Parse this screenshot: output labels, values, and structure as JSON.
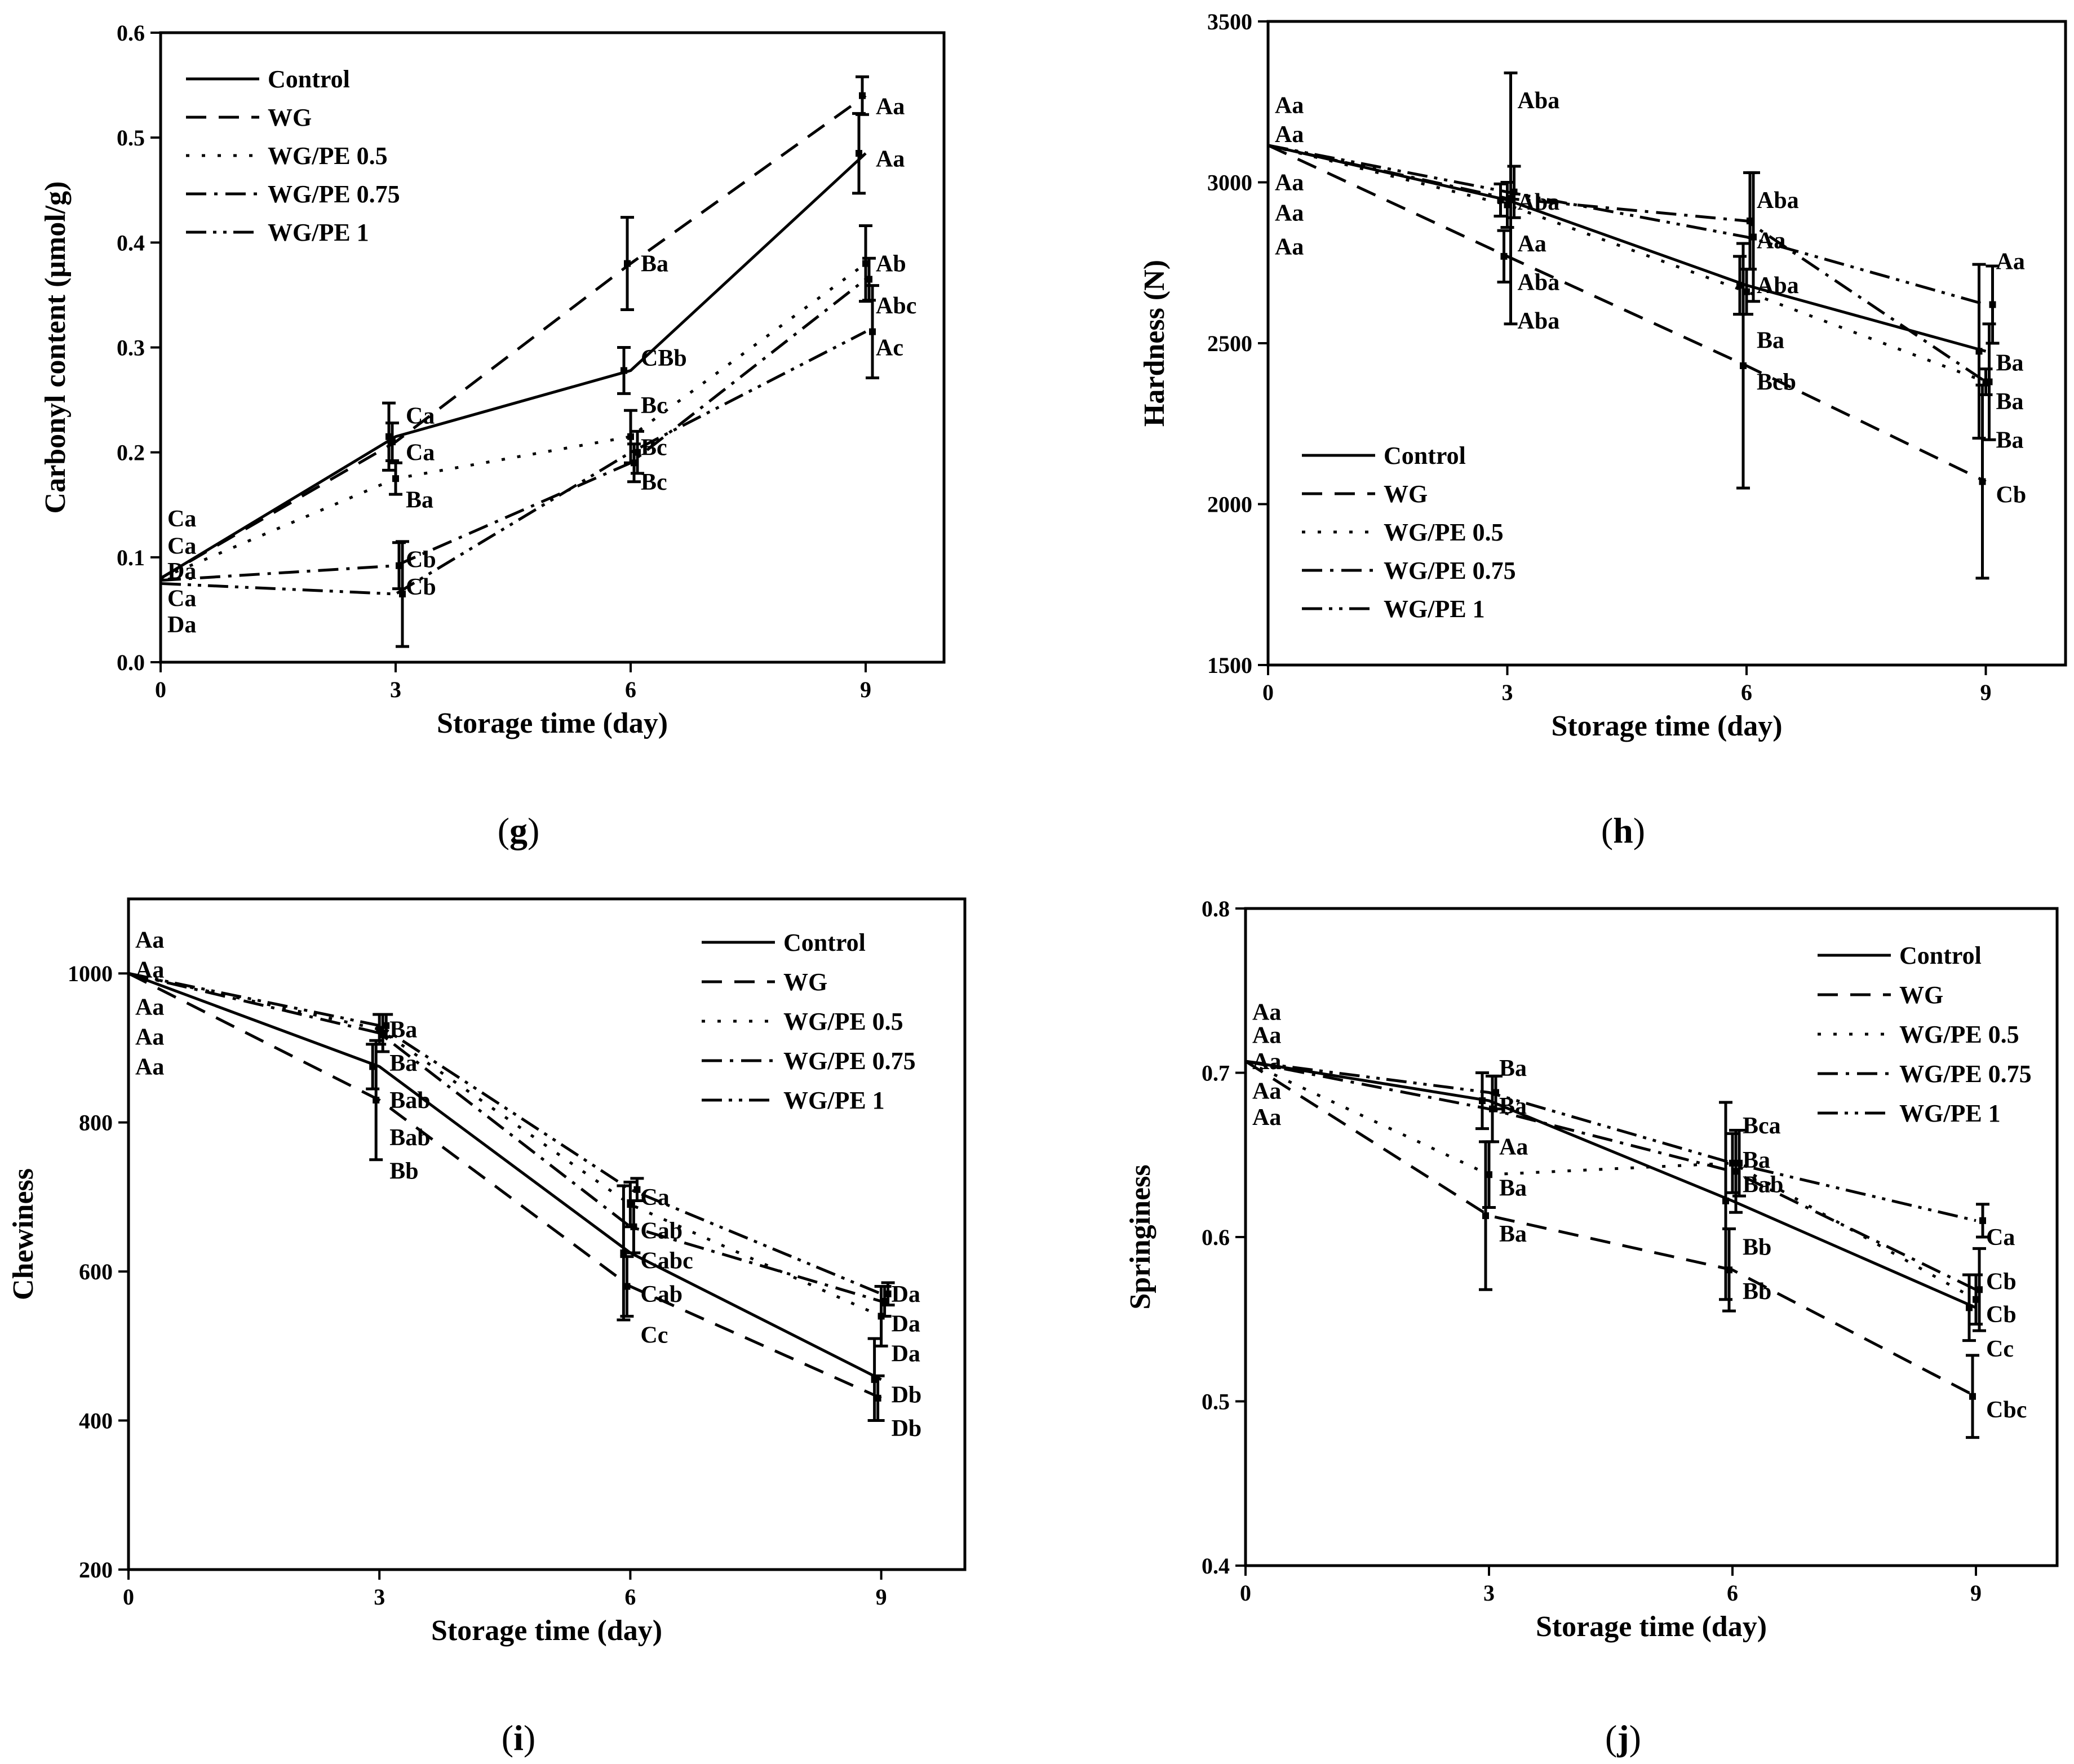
{
  "styles": {
    "Control": "",
    "WG": "36,22",
    "WG/PE 0.5": "6,22",
    "WG/PE 0.75": "36,14,6,14",
    "WG/PE 1": "36,12,6,12,6,12"
  },
  "chart_data": [
    {
      "id": "g",
      "type": "line",
      "panel_label": "g",
      "xlabel": "Storage time (day)",
      "ylabel": "Carbonyl content (μmol/g)",
      "x": [
        0,
        3,
        6,
        9
      ],
      "xlim": [
        0,
        10
      ],
      "ylim": [
        0,
        0.6
      ],
      "xticks": [
        0,
        3,
        6,
        9
      ],
      "yticks": [
        0.0,
        0.1,
        0.2,
        0.3,
        0.4,
        0.5,
        0.6
      ],
      "ytick_labels": [
        "0.0",
        "0.1",
        "0.2",
        "0.3",
        "0.4",
        "0.5",
        "0.6"
      ],
      "legend": [
        "Control",
        "WG",
        "WG/PE 0.5",
        "WG/PE 0.75",
        "WG/PE 1"
      ],
      "series": [
        {
          "name": "Control",
          "values": [
            0.08,
            0.215,
            0.278,
            0.485
          ],
          "err": [
            0.005,
            0.032,
            0.022,
            0.038
          ]
        },
        {
          "name": "WG",
          "values": [
            0.08,
            0.21,
            0.38,
            0.54
          ],
          "err": [
            0.005,
            0.018,
            0.044,
            0.018
          ]
        },
        {
          "name": "WG/PE 0.5",
          "values": [
            0.08,
            0.175,
            0.215,
            0.38
          ],
          "err": [
            0.005,
            0.015,
            0.025,
            0.036
          ]
        },
        {
          "name": "WG/PE 0.75",
          "values": [
            0.078,
            0.092,
            0.19,
            0.365
          ],
          "err": [
            0.004,
            0.022,
            0.018,
            0.02
          ]
        },
        {
          "name": "WG/PE 1",
          "values": [
            0.075,
            0.065,
            0.2,
            0.315
          ],
          "err": [
            0.004,
            0.05,
            0.02,
            0.044
          ]
        }
      ],
      "annotations": [
        {
          "x": 0,
          "y": 0.137,
          "text": "Ca"
        },
        {
          "x": 0,
          "y": 0.111,
          "text": "Ca"
        },
        {
          "x": 0,
          "y": 0.087,
          "text": "Da"
        },
        {
          "x": 0,
          "y": 0.061,
          "text": "Ca"
        },
        {
          "x": 0,
          "y": 0.036,
          "text": "Da"
        },
        {
          "x": 3,
          "y": 0.235,
          "text": "Ca"
        },
        {
          "x": 3,
          "y": 0.2,
          "text": "Ca"
        },
        {
          "x": 3,
          "y": 0.155,
          "text": "Ba"
        },
        {
          "x": 3,
          "y": 0.098,
          "text": "Cb"
        },
        {
          "x": 3,
          "y": 0.072,
          "text": "Cb"
        },
        {
          "x": 6,
          "y": 0.38,
          "text": "Ba"
        },
        {
          "x": 6,
          "y": 0.29,
          "text": "CBb"
        },
        {
          "x": 6,
          "y": 0.245,
          "text": "Bc"
        },
        {
          "x": 6,
          "y": 0.205,
          "text": "Bc"
        },
        {
          "x": 6,
          "y": 0.172,
          "text": "Bc"
        },
        {
          "x": 9,
          "y": 0.53,
          "text": "Aa"
        },
        {
          "x": 9,
          "y": 0.48,
          "text": "Aa"
        },
        {
          "x": 9,
          "y": 0.38,
          "text": "Ab"
        },
        {
          "x": 9,
          "y": 0.34,
          "text": "Abc"
        },
        {
          "x": 9,
          "y": 0.3,
          "text": "Ac"
        }
      ]
    },
    {
      "id": "h",
      "type": "line",
      "panel_label": "h",
      "xlabel": "Storage time (day)",
      "ylabel": "Hardness (N)",
      "x": [
        0,
        3,
        6,
        9
      ],
      "xlim": [
        0,
        10
      ],
      "ylim": [
        1500,
        3500
      ],
      "xticks": [
        0,
        3,
        6,
        9
      ],
      "yticks": [
        1500,
        2000,
        2500,
        3000,
        3500
      ],
      "ytick_labels": [
        "1500",
        "2000",
        "2500",
        "3000",
        "3500"
      ],
      "legend": [
        "Control",
        "WG",
        "WG/PE 0.5",
        "WG/PE 0.75",
        "WG/PE 1"
      ],
      "series": [
        {
          "name": "Control",
          "values": [
            3115,
            2945,
            2680,
            2475
          ],
          "err": [
            5,
            50,
            90,
            270
          ]
        },
        {
          "name": "WG",
          "values": [
            3115,
            2770,
            2430,
            2070
          ],
          "err": [
            5,
            80,
            380,
            300
          ]
        },
        {
          "name": "WG/PE 0.5",
          "values": [
            3115,
            2930,
            2660,
            2380
          ],
          "err": [
            5,
            70,
            70,
            40
          ]
        },
        {
          "name": "WG/PE 0.75",
          "values": [
            3115,
            2950,
            2880,
            2380
          ],
          "err": [
            5,
            390,
            150,
            180
          ]
        },
        {
          "name": "WG/PE 1",
          "values": [
            3115,
            2970,
            2830,
            2620
          ],
          "err": [
            5,
            80,
            200,
            120
          ]
        }
      ],
      "annotations": [
        {
          "x": 0,
          "y": 3240,
          "text": "Aa"
        },
        {
          "x": 0,
          "y": 3150,
          "text": "Aa"
        },
        {
          "x": 0,
          "y": 3000,
          "text": "Aa"
        },
        {
          "x": 0,
          "y": 2905,
          "text": "Aa"
        },
        {
          "x": 0,
          "y": 2800,
          "text": "Aa"
        },
        {
          "x": 3,
          "y": 3255,
          "text": "Aba"
        },
        {
          "x": 3,
          "y": 2940,
          "text": "Aba"
        },
        {
          "x": 3,
          "y": 2810,
          "text": "Aa"
        },
        {
          "x": 3,
          "y": 2690,
          "text": "Aba"
        },
        {
          "x": 3,
          "y": 2570,
          "text": "Aba"
        },
        {
          "x": 6,
          "y": 2945,
          "text": "Aba"
        },
        {
          "x": 6,
          "y": 2820,
          "text": "Aa"
        },
        {
          "x": 6,
          "y": 2680,
          "text": "Aba"
        },
        {
          "x": 6,
          "y": 2510,
          "text": "Ba"
        },
        {
          "x": 6,
          "y": 2380,
          "text": "Bcb"
        },
        {
          "x": 9,
          "y": 2755,
          "text": "Aa"
        },
        {
          "x": 9,
          "y": 2440,
          "text": "Ba"
        },
        {
          "x": 9,
          "y": 2320,
          "text": "Ba"
        },
        {
          "x": 9,
          "y": 2200,
          "text": "Ba"
        },
        {
          "x": 9,
          "y": 2030,
          "text": "Cb"
        }
      ]
    },
    {
      "id": "i",
      "type": "line",
      "panel_label": "i",
      "xlabel": "Storage time (day)",
      "ylabel": "Chewiness",
      "x": [
        0,
        3,
        6,
        9
      ],
      "xlim": [
        0,
        10
      ],
      "ylim": [
        200,
        1100
      ],
      "xticks": [
        0,
        3,
        6,
        9
      ],
      "yticks": [
        200,
        400,
        600,
        800,
        1000
      ],
      "ytick_labels": [
        "200",
        "400",
        "600",
        "800",
        "1000"
      ],
      "legend": [
        "Control",
        "WG",
        "WG/PE 0.5",
        "WG/PE 0.75",
        "WG/PE 1"
      ],
      "series": [
        {
          "name": "Control",
          "values": [
            1000,
            875,
            625,
            455
          ],
          "err": [
            5,
            30,
            90,
            55
          ]
        },
        {
          "name": "WG",
          "values": [
            1000,
            830,
            580,
            430
          ],
          "err": [
            5,
            80,
            40,
            30
          ]
        },
        {
          "name": "WG/PE 0.5",
          "values": [
            1000,
            925,
            690,
            540
          ],
          "err": [
            5,
            20,
            30,
            40
          ]
        },
        {
          "name": "WG/PE 0.75",
          "values": [
            1000,
            920,
            660,
            560
          ],
          "err": [
            5,
            25,
            35,
            20
          ]
        },
        {
          "name": "WG/PE 1",
          "values": [
            1000,
            930,
            710,
            570
          ],
          "err": [
            5,
            15,
            15,
            15
          ]
        }
      ],
      "annotations": [
        {
          "x": 0,
          "y": 1045,
          "text": "Aa"
        },
        {
          "x": 0,
          "y": 1005,
          "text": "Aa"
        },
        {
          "x": 0,
          "y": 955,
          "text": "Aa"
        },
        {
          "x": 0,
          "y": 915,
          "text": "Aa"
        },
        {
          "x": 0,
          "y": 875,
          "text": "Aa"
        },
        {
          "x": 3,
          "y": 925,
          "text": "Ba"
        },
        {
          "x": 3,
          "y": 880,
          "text": "Ba"
        },
        {
          "x": 3,
          "y": 830,
          "text": "Bab"
        },
        {
          "x": 3,
          "y": 780,
          "text": "Bab"
        },
        {
          "x": 3,
          "y": 735,
          "text": "Bb"
        },
        {
          "x": 6,
          "y": 700,
          "text": "Ca"
        },
        {
          "x": 6,
          "y": 655,
          "text": "Cab"
        },
        {
          "x": 6,
          "y": 615,
          "text": "Cabc"
        },
        {
          "x": 6,
          "y": 570,
          "text": "Cab"
        },
        {
          "x": 6,
          "y": 515,
          "text": "Cc"
        },
        {
          "x": 9,
          "y": 570,
          "text": "Da"
        },
        {
          "x": 9,
          "y": 530,
          "text": "Da"
        },
        {
          "x": 9,
          "y": 490,
          "text": "Da"
        },
        {
          "x": 9,
          "y": 435,
          "text": "Db"
        },
        {
          "x": 9,
          "y": 390,
          "text": "Db"
        }
      ]
    },
    {
      "id": "j",
      "type": "line",
      "panel_label": "j",
      "xlabel": "Storage time (day)",
      "ylabel": "Springiness",
      "x": [
        0,
        3,
        6,
        9
      ],
      "xlim": [
        0,
        10
      ],
      "ylim": [
        0.4,
        0.8
      ],
      "xticks": [
        0,
        3,
        6,
        9
      ],
      "yticks": [
        0.4,
        0.5,
        0.6,
        0.7,
        0.8
      ],
      "ytick_labels": [
        "0.4",
        "0.5",
        "0.6",
        "0.7",
        "0.8"
      ],
      "legend": [
        "Control",
        "WG",
        "WG/PE 0.5",
        "WG/PE 0.75",
        "WG/PE 1"
      ],
      "series": [
        {
          "name": "Control",
          "values": [
            0.707,
            0.683,
            0.622,
            0.557
          ],
          "err": [
            0.002,
            0.017,
            0.06,
            0.02
          ]
        },
        {
          "name": "WG",
          "values": [
            0.707,
            0.613,
            0.58,
            0.503
          ],
          "err": [
            0.002,
            0.045,
            0.025,
            0.025
          ]
        },
        {
          "name": "WG/PE 0.5",
          "values": [
            0.707,
            0.638,
            0.645,
            0.562
          ],
          "err": [
            0.002,
            0.02,
            0.018,
            0.015
          ]
        },
        {
          "name": "WG/PE 0.75",
          "values": [
            0.707,
            0.678,
            0.64,
            0.568
          ],
          "err": [
            0.002,
            0.02,
            0.025,
            0.025
          ]
        },
        {
          "name": "WG/PE 1",
          "values": [
            0.707,
            0.688,
            0.645,
            0.61
          ],
          "err": [
            0.002,
            0.01,
            0.02,
            0.01
          ]
        }
      ],
      "annotations": [
        {
          "x": 0,
          "y": 0.737,
          "text": "Aa"
        },
        {
          "x": 0,
          "y": 0.723,
          "text": "Aa"
        },
        {
          "x": 0,
          "y": 0.707,
          "text": "Aa"
        },
        {
          "x": 0,
          "y": 0.689,
          "text": "Aa"
        },
        {
          "x": 0,
          "y": 0.673,
          "text": "Aa"
        },
        {
          "x": 3,
          "y": 0.703,
          "text": "Ba"
        },
        {
          "x": 3,
          "y": 0.68,
          "text": "Ba"
        },
        {
          "x": 3,
          "y": 0.655,
          "text": "Aa"
        },
        {
          "x": 3,
          "y": 0.63,
          "text": "Ba"
        },
        {
          "x": 3,
          "y": 0.602,
          "text": "Ba"
        },
        {
          "x": 6,
          "y": 0.668,
          "text": "Bca"
        },
        {
          "x": 6,
          "y": 0.647,
          "text": "Ba"
        },
        {
          "x": 6,
          "y": 0.632,
          "text": "Bab"
        },
        {
          "x": 6,
          "y": 0.594,
          "text": "Bb"
        },
        {
          "x": 6,
          "y": 0.567,
          "text": "Bb"
        },
        {
          "x": 9,
          "y": 0.6,
          "text": "Ca"
        },
        {
          "x": 9,
          "y": 0.573,
          "text": "Cb"
        },
        {
          "x": 9,
          "y": 0.553,
          "text": "Cb"
        },
        {
          "x": 9,
          "y": 0.532,
          "text": "Cc"
        },
        {
          "x": 9,
          "y": 0.495,
          "text": "Cbc"
        }
      ]
    }
  ]
}
